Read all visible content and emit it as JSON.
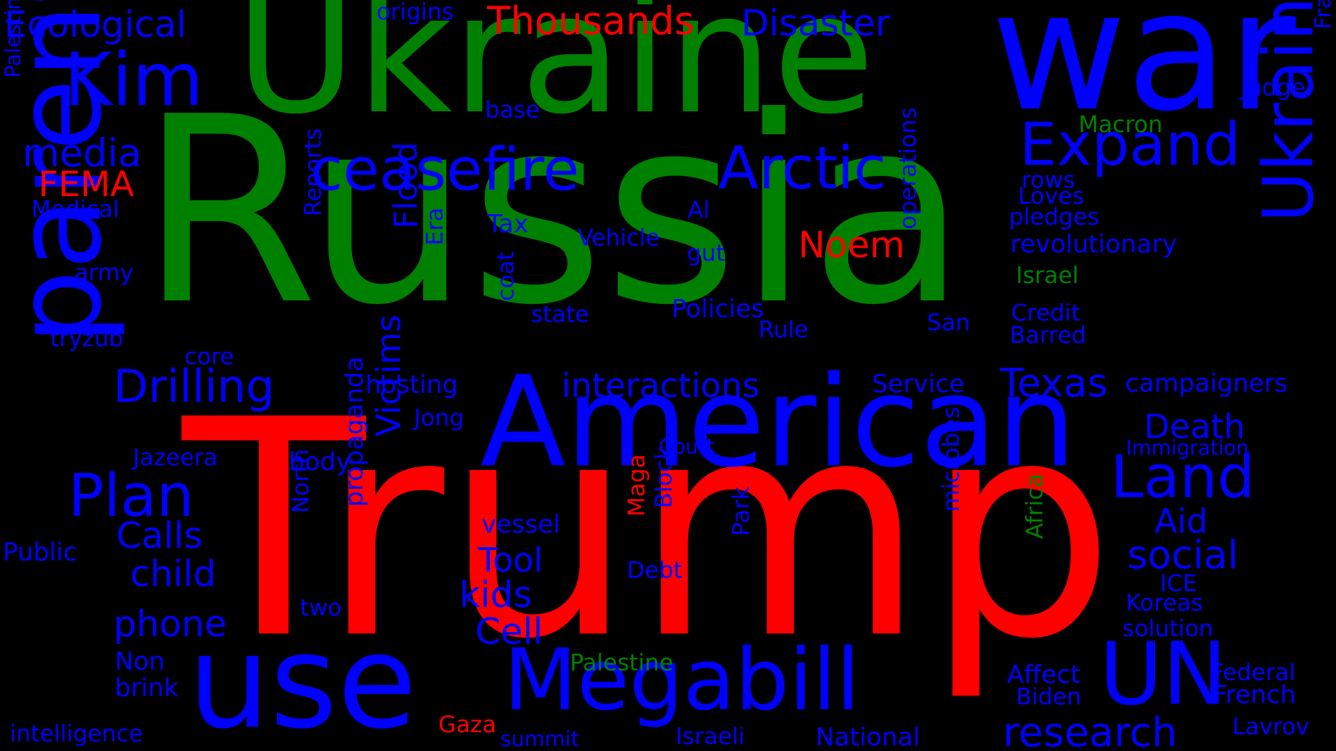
{
  "colors": {
    "background": "#000000",
    "blue": "#0000ff",
    "green": "#008000",
    "red": "#ff0000"
  },
  "words": [
    {
      "text": "Russia",
      "color": "green"
    },
    {
      "text": "Trump",
      "color": "red"
    },
    {
      "text": "Ukraine",
      "color": "green"
    },
    {
      "text": "war",
      "color": "blue"
    },
    {
      "text": "American",
      "color": "blue"
    },
    {
      "text": "parent",
      "color": "blue"
    },
    {
      "text": "use",
      "color": "blue"
    },
    {
      "text": "Ukrainian",
      "color": "blue"
    },
    {
      "text": "Megabill",
      "color": "blue"
    },
    {
      "text": "UN",
      "color": "blue"
    },
    {
      "text": "Kim",
      "color": "blue"
    },
    {
      "text": "ceasefire",
      "color": "blue"
    },
    {
      "text": "Arctic",
      "color": "blue"
    },
    {
      "text": "Expand",
      "color": "blue"
    },
    {
      "text": "Land",
      "color": "blue"
    },
    {
      "text": "Plan",
      "color": "blue"
    },
    {
      "text": "Drilling",
      "color": "blue"
    },
    {
      "text": "research",
      "color": "blue"
    },
    {
      "text": "Thousands",
      "color": "red"
    },
    {
      "text": "Disaster",
      "color": "blue"
    },
    {
      "text": "Ecological",
      "color": "blue"
    },
    {
      "text": "media",
      "color": "blue"
    },
    {
      "text": "FEMA",
      "color": "red"
    },
    {
      "text": "social",
      "color": "blue"
    },
    {
      "text": "interactions",
      "color": "blue"
    },
    {
      "text": "Texas",
      "color": "blue"
    },
    {
      "text": "Noem",
      "color": "red"
    },
    {
      "text": "Victims",
      "color": "blue"
    },
    {
      "text": "Flood",
      "color": "blue"
    },
    {
      "text": "child",
      "color": "blue"
    },
    {
      "text": "phone",
      "color": "blue"
    },
    {
      "text": "Calls",
      "color": "blue"
    },
    {
      "text": "Tool",
      "color": "blue"
    },
    {
      "text": "kids",
      "color": "blue"
    },
    {
      "text": "Cell",
      "color": "blue"
    },
    {
      "text": "Death",
      "color": "blue"
    },
    {
      "text": "Aid",
      "color": "blue"
    },
    {
      "text": "Macron",
      "color": "green"
    },
    {
      "text": "Judge",
      "color": "blue"
    },
    {
      "text": "Francisco",
      "color": "blue"
    },
    {
      "text": "Palestinians",
      "color": "blue"
    },
    {
      "text": "Medical",
      "color": "blue"
    },
    {
      "text": "army",
      "color": "blue"
    },
    {
      "text": "tryzub",
      "color": "blue"
    },
    {
      "text": "core",
      "color": "blue"
    },
    {
      "text": "Reports",
      "color": "blue"
    },
    {
      "text": "Era",
      "color": "blue"
    },
    {
      "text": "Tax",
      "color": "blue"
    },
    {
      "text": "Vehicle",
      "color": "blue"
    },
    {
      "text": "gut",
      "color": "blue"
    },
    {
      "text": "Al",
      "color": "blue"
    },
    {
      "text": "Policies",
      "color": "blue"
    },
    {
      "text": "state",
      "color": "blue"
    },
    {
      "text": "Rule",
      "color": "blue"
    },
    {
      "text": "coat",
      "color": "blue"
    },
    {
      "text": "base",
      "color": "blue"
    },
    {
      "text": "origins",
      "color": "blue"
    },
    {
      "text": "rows",
      "color": "blue"
    },
    {
      "text": "Loves",
      "color": "blue"
    },
    {
      "text": "pledges",
      "color": "blue"
    },
    {
      "text": "revolutionary",
      "color": "blue"
    },
    {
      "text": "Israel",
      "color": "green"
    },
    {
      "text": "Credit",
      "color": "blue"
    },
    {
      "text": "Barred",
      "color": "blue"
    },
    {
      "text": "San",
      "color": "blue"
    },
    {
      "text": "operations",
      "color": "blue"
    },
    {
      "text": "Service",
      "color": "blue"
    },
    {
      "text": "campaigners",
      "color": "blue"
    },
    {
      "text": "hosting",
      "color": "blue"
    },
    {
      "text": "Jong",
      "color": "blue"
    },
    {
      "text": "Jazeera",
      "color": "blue"
    },
    {
      "text": "body",
      "color": "blue"
    },
    {
      "text": "Court",
      "color": "blue"
    },
    {
      "text": "Immigration",
      "color": "blue"
    },
    {
      "text": "Public",
      "color": "blue"
    },
    {
      "text": "North",
      "color": "blue"
    },
    {
      "text": "propaganda",
      "color": "blue"
    },
    {
      "text": "vessel",
      "color": "blue"
    },
    {
      "text": "Maga",
      "color": "red"
    },
    {
      "text": "Block",
      "color": "blue"
    },
    {
      "text": "Debt",
      "color": "blue"
    },
    {
      "text": "Park",
      "color": "blue"
    },
    {
      "text": "microbes",
      "color": "blue"
    },
    {
      "text": "Africa",
      "color": "green"
    },
    {
      "text": "ICE",
      "color": "blue"
    },
    {
      "text": "Koreas",
      "color": "blue"
    },
    {
      "text": "solution",
      "color": "blue"
    },
    {
      "text": "two",
      "color": "blue"
    },
    {
      "text": "Non",
      "color": "blue"
    },
    {
      "text": "brink",
      "color": "blue"
    },
    {
      "text": "intelligence",
      "color": "blue"
    },
    {
      "text": "Palestine",
      "color": "green"
    },
    {
      "text": "Affect",
      "color": "blue"
    },
    {
      "text": "Biden",
      "color": "blue"
    },
    {
      "text": "Federal",
      "color": "blue"
    },
    {
      "text": "French",
      "color": "blue"
    },
    {
      "text": "Lavrov",
      "color": "blue"
    },
    {
      "text": "Gaza",
      "color": "red"
    },
    {
      "text": "summit",
      "color": "blue"
    },
    {
      "text": "Israeli",
      "color": "blue"
    },
    {
      "text": "National",
      "color": "blue"
    }
  ]
}
